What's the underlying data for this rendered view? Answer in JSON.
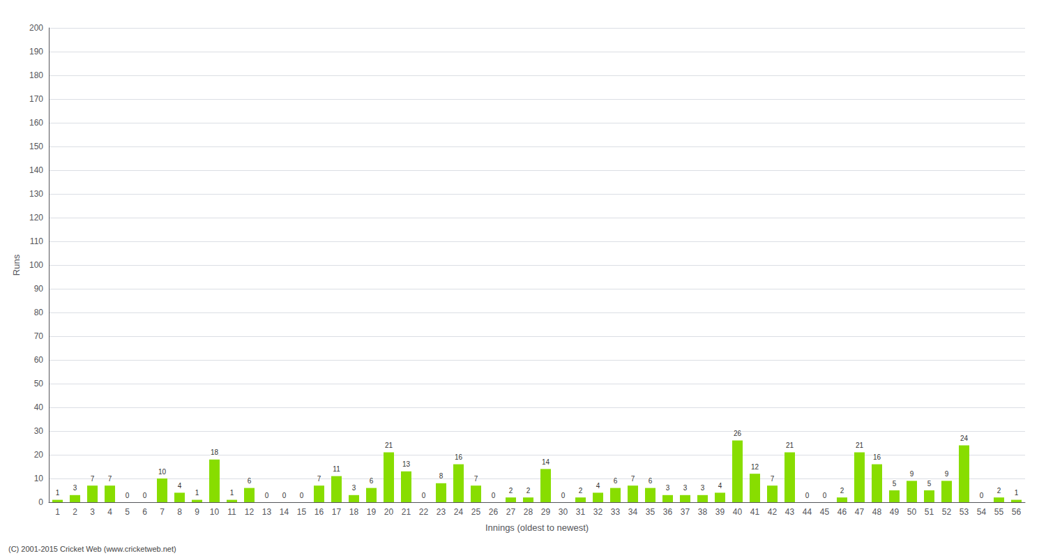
{
  "chart_data": {
    "type": "bar",
    "xlabel": "Innings (oldest to newest)",
    "ylabel": "Runs",
    "categories": [
      "1",
      "2",
      "3",
      "4",
      "5",
      "6",
      "7",
      "8",
      "9",
      "10",
      "11",
      "12",
      "13",
      "14",
      "15",
      "16",
      "17",
      "18",
      "19",
      "20",
      "21",
      "22",
      "23",
      "24",
      "25",
      "26",
      "27",
      "28",
      "29",
      "30",
      "31",
      "32",
      "33",
      "34",
      "35",
      "36",
      "37",
      "38",
      "39",
      "40",
      "41",
      "42",
      "43",
      "44",
      "45",
      "46",
      "47",
      "48",
      "49",
      "50",
      "51",
      "52",
      "53",
      "54",
      "55",
      "56"
    ],
    "values": [
      1,
      3,
      7,
      7,
      0,
      0,
      10,
      4,
      1,
      18,
      1,
      6,
      0,
      0,
      0,
      7,
      11,
      3,
      6,
      21,
      13,
      0,
      8,
      16,
      7,
      0,
      2,
      2,
      14,
      0,
      2,
      4,
      6,
      7,
      6,
      3,
      3,
      3,
      4,
      26,
      12,
      7,
      21,
      0,
      0,
      2,
      21,
      16,
      5,
      9,
      5,
      9,
      24,
      0,
      2,
      1
    ],
    "color": "#88dd00",
    "ylim": [
      0,
      200
    ],
    "yticks": [
      0,
      10,
      20,
      30,
      40,
      50,
      60,
      70,
      80,
      90,
      100,
      110,
      120,
      130,
      140,
      150,
      160,
      170,
      180,
      190,
      200
    ],
    "grid": true,
    "data_labels": true,
    "annotations": [
      "(C) 2001-2015 Cricket Web (www.cricketweb.net)"
    ]
  }
}
